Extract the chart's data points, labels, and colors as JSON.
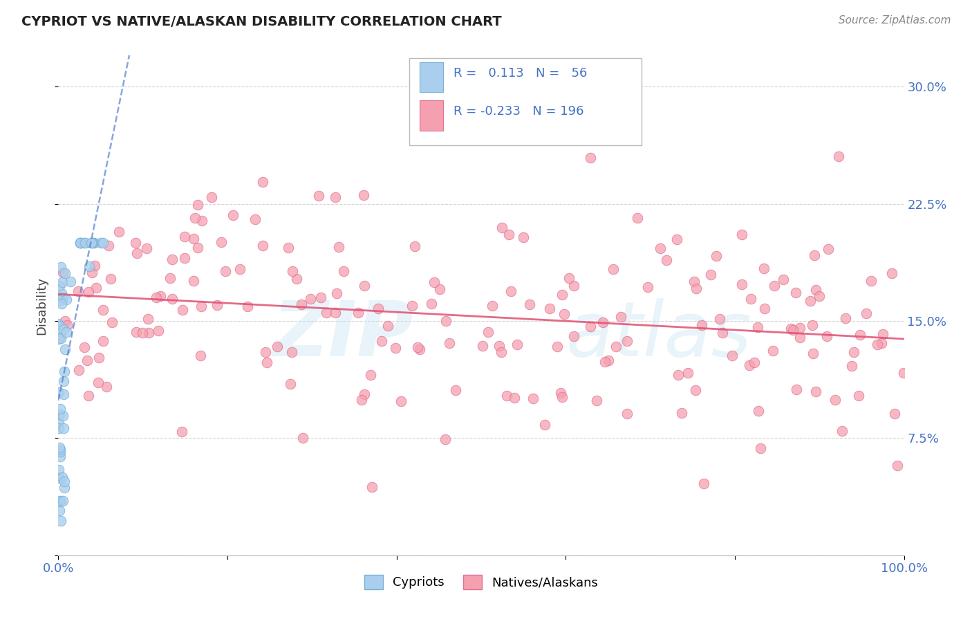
{
  "title": "CYPRIOT VS NATIVE/ALASKAN DISABILITY CORRELATION CHART",
  "source": "Source: ZipAtlas.com",
  "ylabel": "Disability",
  "xlim": [
    0.0,
    1.0
  ],
  "ylim": [
    0.0,
    0.32
  ],
  "yticks": [
    0.0,
    0.075,
    0.15,
    0.225,
    0.3
  ],
  "ytick_labels": [
    "",
    "7.5%",
    "15.0%",
    "22.5%",
    "30.0%"
  ],
  "cypriot_R": 0.113,
  "cypriot_N": 56,
  "alaskan_R": -0.233,
  "alaskan_N": 196,
  "cypriot_color": "#aacfee",
  "cypriot_edge": "#7aafd4",
  "alaskan_color": "#f5a0b0",
  "alaskan_edge": "#e07090",
  "trendline_cypriot_color": "#4477cc",
  "trendline_alaskan_color": "#e05070",
  "background_color": "#ffffff",
  "grid_color": "#c8c8c8",
  "label_color": "#4472C4",
  "title_color": "#222222",
  "source_color": "#888888"
}
